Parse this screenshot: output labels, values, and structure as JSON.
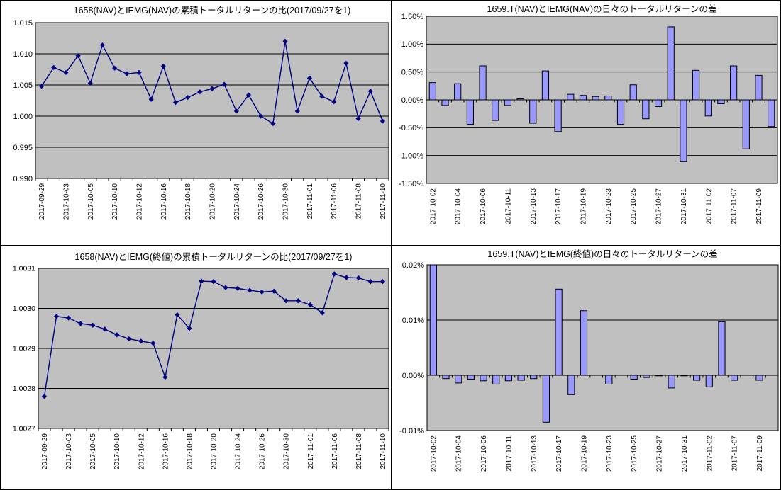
{
  "colors": {
    "plot_bg": "#c0c0c0",
    "axis": "#000000",
    "gridline": "#000000",
    "line": "#000080",
    "marker": "#000080",
    "bar_fill": "#9999ff",
    "bar_border": "#000000",
    "background": "#ffffff"
  },
  "chart_data": [
    {
      "key": "cumulative_return_nav",
      "type": "line",
      "title": "1658(NAV)とIEMG(NAV)の累積トータルリターンの比(2017/09/27を1)",
      "legend": "none",
      "grid": "horizontal",
      "x_label_step": 2,
      "categories": [
        "2017-09-29",
        "2017-10-02",
        "2017-10-03",
        "2017-10-04",
        "2017-10-05",
        "2017-10-06",
        "2017-10-10",
        "2017-10-11",
        "2017-10-12",
        "2017-10-13",
        "2017-10-16",
        "2017-10-17",
        "2017-10-18",
        "2017-10-19",
        "2017-10-20",
        "2017-10-23",
        "2017-10-24",
        "2017-10-25",
        "2017-10-26",
        "2017-10-27",
        "2017-10-30",
        "2017-10-31",
        "2017-11-01",
        "2017-11-02",
        "2017-11-06",
        "2017-11-07",
        "2017-11-08",
        "2017-11-09",
        "2017-11-10"
      ],
      "values": [
        1.0048,
        1.0078,
        1.007,
        1.0097,
        1.0053,
        1.0114,
        1.0077,
        1.0068,
        1.007,
        1.0027,
        1.008,
        1.0022,
        1.003,
        1.0039,
        1.0044,
        1.0051,
        1.0008,
        1.0034,
        1.0,
        0.9988,
        1.012,
        1.0008,
        1.0061,
        1.0032,
        1.0023,
        1.0085,
        0.9996,
        1.004,
        0.9992
      ],
      "ylim": [
        0.99,
        1.015
      ],
      "y_ticks": {
        "values": [
          1.015,
          1.01,
          1.005,
          1.0,
          0.995,
          0.99
        ],
        "labels": [
          "1.015",
          "1.010",
          "1.005",
          "1.000",
          "0.995",
          "0.990"
        ]
      }
    },
    {
      "key": "daily_diff_nav",
      "type": "bar",
      "title": "1659.T(NAV)とIEMG(NAV)の日々のトータルリターンの差",
      "legend": "none",
      "grid": "horizontal",
      "x_label_step": 2,
      "unit": "%",
      "categories": [
        "2017-10-02",
        "2017-10-03",
        "2017-10-04",
        "2017-10-05",
        "2017-10-06",
        "2017-10-10",
        "2017-10-11",
        "2017-10-12",
        "2017-10-13",
        "2017-10-16",
        "2017-10-17",
        "2017-10-18",
        "2017-10-19",
        "2017-10-20",
        "2017-10-23",
        "2017-10-24",
        "2017-10-25",
        "2017-10-26",
        "2017-10-27",
        "2017-10-30",
        "2017-10-31",
        "2017-11-01",
        "2017-11-02",
        "2017-11-06",
        "2017-11-07",
        "2017-11-08",
        "2017-11-09",
        "2017-11-10"
      ],
      "values": [
        0.31,
        -0.1,
        0.29,
        -0.44,
        0.61,
        -0.37,
        -0.1,
        0.02,
        -0.42,
        0.52,
        -0.57,
        0.1,
        0.08,
        0.06,
        0.07,
        -0.44,
        0.27,
        -0.34,
        -0.12,
        1.31,
        -1.11,
        0.53,
        -0.29,
        -0.07,
        0.61,
        -0.88,
        0.44,
        -0.48
      ],
      "ylim": [
        -1.5,
        1.5
      ],
      "y_ticks": {
        "values": [
          1.5,
          1.0,
          0.5,
          0.0,
          -0.5,
          -1.0,
          -1.5
        ],
        "labels": [
          "1.50%",
          "1.00%",
          "0.50%",
          "0.00%",
          "-0.50%",
          "-1.00%",
          "-1.50%"
        ]
      }
    },
    {
      "key": "cumulative_return_close",
      "type": "line",
      "title": "1658(NAV)とIEMG(終値)の累積トータルリターンの比(2017/09/27を1)",
      "legend": "none",
      "grid": "horizontal",
      "x_label_step": 2,
      "categories": [
        "2017-09-29",
        "2017-10-02",
        "2017-10-03",
        "2017-10-04",
        "2017-10-05",
        "2017-10-06",
        "2017-10-10",
        "2017-10-11",
        "2017-10-12",
        "2017-10-13",
        "2017-10-16",
        "2017-10-17",
        "2017-10-18",
        "2017-10-19",
        "2017-10-20",
        "2017-10-23",
        "2017-10-24",
        "2017-10-25",
        "2017-10-26",
        "2017-10-27",
        "2017-10-30",
        "2017-10-31",
        "2017-11-01",
        "2017-11-02",
        "2017-11-06",
        "2017-11-07",
        "2017-11-08",
        "2017-11-09",
        "2017-11-10"
      ],
      "values": [
        1.00278,
        1.00298,
        1.002976,
        1.002962,
        1.002958,
        1.002948,
        1.002934,
        1.002924,
        1.002918,
        1.002913,
        1.002828,
        1.002984,
        1.00295,
        1.003068,
        1.003067,
        1.003052,
        1.00305,
        1.003045,
        1.003041,
        1.003043,
        1.003019,
        1.003019,
        1.003009,
        1.002989,
        1.003086,
        1.003077,
        1.003076,
        1.003067,
        1.003067
      ],
      "ylim": [
        1.0027,
        1.0031
      ],
      "y_ticks": {
        "values": [
          1.0031,
          1.003,
          1.0029,
          1.0028,
          1.0027
        ],
        "labels": [
          "1.0031",
          "1.0030",
          "1.0029",
          "1.0028",
          "1.0027"
        ]
      }
    },
    {
      "key": "daily_diff_close",
      "type": "bar",
      "title": "1659.T(NAV)とIEMG(終値)の日々のトータルリターンの差",
      "legend": "none",
      "grid": "horizontal",
      "x_label_step": 2,
      "unit": "%",
      "categories": [
        "2017-10-02",
        "2017-10-03",
        "2017-10-04",
        "2017-10-05",
        "2017-10-06",
        "2017-10-10",
        "2017-10-11",
        "2017-10-12",
        "2017-10-13",
        "2017-10-16",
        "2017-10-17",
        "2017-10-18",
        "2017-10-19",
        "2017-10-20",
        "2017-10-23",
        "2017-10-24",
        "2017-10-25",
        "2017-10-26",
        "2017-10-27",
        "2017-10-30",
        "2017-10-31",
        "2017-11-01",
        "2017-11-02",
        "2017-11-06",
        "2017-11-07",
        "2017-11-08",
        "2017-11-09",
        "2017-11-10"
      ],
      "values": [
        0.02,
        -0.0006,
        -0.0014,
        -0.0007,
        -0.001,
        -0.0016,
        -0.001,
        -0.0009,
        -0.0006,
        -0.0085,
        0.0156,
        -0.0035,
        0.0117,
        0,
        -0.0016,
        0,
        -0.0007,
        -0.0004,
        -0.0001,
        -0.0023,
        -0.0001,
        -0.0009,
        -0.0021,
        0.0097,
        -0.0009,
        0,
        -0.0009,
        0
      ],
      "ylim": [
        -0.01,
        0.02
      ],
      "y_ticks": {
        "values": [
          0.02,
          0.01,
          0.0,
          -0.01
        ],
        "labels": [
          "0.02%",
          "0.01%",
          "0.00%",
          "-0.01%"
        ]
      }
    }
  ]
}
